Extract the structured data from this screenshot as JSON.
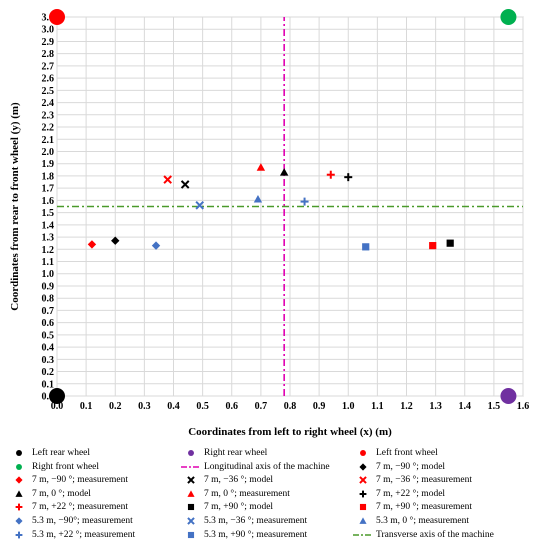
{
  "chart_data": {
    "type": "scatter",
    "xlabel": "Coordinates from left to right wheel (x) (m)",
    "ylabel": "Coordinates from rear to front wheel (y) (m)",
    "xlim": [
      0,
      1.6
    ],
    "ylim": [
      0,
      3.1
    ],
    "x_ticks": [
      "0.0",
      "0.1",
      "0.2",
      "0.3",
      "0.4",
      "0.5",
      "0.6",
      "0.7",
      "0.8",
      "0.9",
      "1.0",
      "1.1",
      "1.2",
      "1.3",
      "1.4",
      "1.5",
      "1.6"
    ],
    "y_ticks": [
      "0.0",
      "0.1",
      "0.2",
      "0.3",
      "0.4",
      "0.5",
      "0.6",
      "0.7",
      "0.8",
      "0.9",
      "1.0",
      "1.1",
      "1.2",
      "1.3",
      "1.4",
      "1.5",
      "1.6",
      "1.7",
      "1.8",
      "1.9",
      "2.0",
      "2.1",
      "2.2",
      "2.3",
      "2.4",
      "2.5",
      "2.6",
      "2.7",
      "2.8",
      "2.9",
      "3.0",
      "3.1"
    ],
    "grid": true,
    "legend_position": "bottom",
    "series": [
      {
        "name": "Left rear wheel",
        "marker": "circle-big",
        "color": "#000000",
        "points": [
          [
            0.0,
            0.0
          ]
        ]
      },
      {
        "name": "Right rear wheel",
        "marker": "circle-big",
        "color": "#7030a0",
        "points": [
          [
            1.55,
            0.0
          ]
        ]
      },
      {
        "name": "Left front wheel",
        "marker": "circle-big",
        "color": "#ff0000",
        "points": [
          [
            0.0,
            3.1
          ]
        ]
      },
      {
        "name": "Right front wheel",
        "marker": "circle-big",
        "color": "#00b050",
        "points": [
          [
            1.55,
            3.1
          ]
        ]
      },
      {
        "name": "Longitudinal axis of the machine",
        "marker": "vline",
        "color": "#e000b0",
        "points": [
          [
            0.78,
            0.0
          ],
          [
            0.78,
            3.1
          ]
        ]
      },
      {
        "name": "7 m, −90 °; model",
        "marker": "diamond",
        "color": "#000000",
        "points": [
          [
            0.2,
            1.27
          ]
        ]
      },
      {
        "name": "7 m, −90 °; measurement",
        "marker": "diamond",
        "color": "#ff0000",
        "points": [
          [
            0.12,
            1.24
          ]
        ]
      },
      {
        "name": "7 m, −36 °; model",
        "marker": "x",
        "color": "#000000",
        "points": [
          [
            0.44,
            1.73
          ]
        ]
      },
      {
        "name": "7 m, −36 °; measurement",
        "marker": "x",
        "color": "#ff0000",
        "points": [
          [
            0.38,
            1.77
          ]
        ]
      },
      {
        "name": "7 m, 0 °; model",
        "marker": "triangle",
        "color": "#000000",
        "points": [
          [
            0.78,
            1.83
          ]
        ]
      },
      {
        "name": "7 m, 0 °; measurement",
        "marker": "triangle",
        "color": "#ff0000",
        "points": [
          [
            0.7,
            1.87
          ]
        ]
      },
      {
        "name": "7 m, +22 °; measurement",
        "marker": "plus",
        "color": "#ff0000",
        "points": [
          [
            0.94,
            1.81
          ]
        ]
      },
      {
        "name": "7 m, +22 °; model",
        "marker": "plus",
        "color": "#000000",
        "points": [
          [
            1.0,
            1.79
          ]
        ]
      },
      {
        "name": "7 m, +90 °; model",
        "marker": "square",
        "color": "#000000",
        "points": [
          [
            1.35,
            1.25
          ]
        ]
      },
      {
        "name": "7 m, +90 °; measurement",
        "marker": "square",
        "color": "#ff0000",
        "points": [
          [
            1.29,
            1.23
          ]
        ]
      },
      {
        "name": "5.3 m, −90°; measurement",
        "marker": "diamond",
        "color": "#4472c4",
        "points": [
          [
            0.34,
            1.23
          ]
        ]
      },
      {
        "name": "5.3 m, −36 °; measurement",
        "marker": "x",
        "color": "#4472c4",
        "points": [
          [
            0.49,
            1.56
          ]
        ]
      },
      {
        "name": "5.3 m, 0 °; measurement",
        "marker": "triangle",
        "color": "#4472c4",
        "points": [
          [
            0.69,
            1.61
          ]
        ]
      },
      {
        "name": "5.3 m, +22 °; measurement",
        "marker": "plus",
        "color": "#4472c4",
        "points": [
          [
            0.85,
            1.59
          ]
        ]
      },
      {
        "name": "5.3 m, +90 °; measurement",
        "marker": "square",
        "color": "#4472c4",
        "points": [
          [
            1.06,
            1.22
          ]
        ]
      },
      {
        "name": "Transverse axis of the machine",
        "marker": "hline",
        "color": "#4a9a2a",
        "points": [
          [
            0.0,
            1.55
          ],
          [
            1.6,
            1.55
          ]
        ]
      }
    ]
  }
}
